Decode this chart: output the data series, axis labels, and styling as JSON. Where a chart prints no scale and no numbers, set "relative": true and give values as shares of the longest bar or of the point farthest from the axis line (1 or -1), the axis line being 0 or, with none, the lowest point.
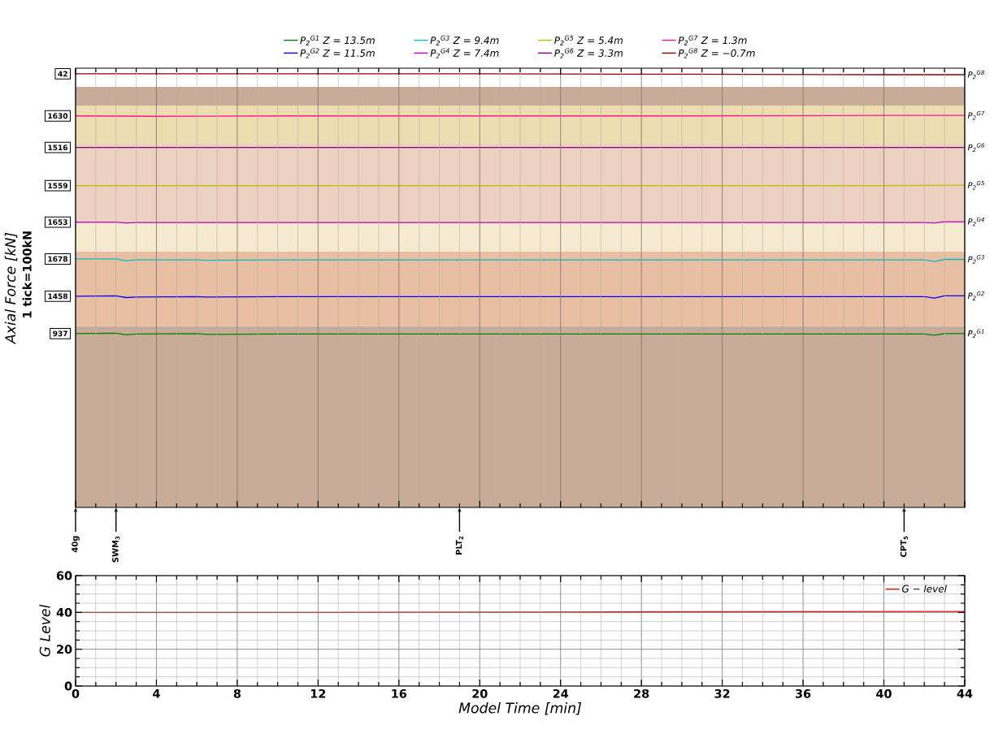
{
  "chart_data": [
    {
      "type": "line",
      "relative": true,
      "ylabel": "Axial Force [kN]",
      "xlim": [
        0,
        44
      ],
      "xticks": [
        0,
        4,
        8,
        12,
        16,
        20,
        24,
        28,
        32,
        36,
        40,
        44
      ],
      "tick_labels": false,
      "grid": true,
      "legend": "top",
      "series": [
        {
          "name": "P$_{2}$$^{G1}$ Z = 13.5m",
          "color": "#008000",
          "x": [
            0,
            2,
            2.5,
            3,
            6,
            6.5,
            10,
            20,
            30,
            40,
            42,
            42.5,
            43,
            44
          ],
          "values": [
            0.401,
            0.402,
            0.398,
            0.4,
            0.401,
            0.399,
            0.4,
            0.4,
            0.4,
            0.4,
            0.4,
            0.397,
            0.401,
            0.401
          ]
        },
        {
          "name": "P$_{2}$$^{G2}$ Z = 11.5m",
          "color": "#0000ff",
          "x": [
            0,
            2,
            2.5,
            3,
            6,
            6.5,
            10,
            20,
            30,
            40,
            42,
            42.5,
            43,
            44
          ],
          "values": [
            0.487,
            0.488,
            0.484,
            0.485,
            0.486,
            0.485,
            0.486,
            0.486,
            0.486,
            0.486,
            0.486,
            0.483,
            0.488,
            0.488
          ]
        },
        {
          "name": "P$_{2}$$^{G3}$ Z = 9.4m",
          "color": "#00bfbf",
          "x": [
            0,
            2,
            2.5,
            3,
            6,
            6.5,
            10,
            20,
            30,
            40,
            42,
            42.5,
            43,
            44
          ],
          "values": [
            0.573,
            0.573,
            0.569,
            0.571,
            0.571,
            0.57,
            0.571,
            0.571,
            0.571,
            0.571,
            0.571,
            0.567,
            0.572,
            0.572
          ]
        },
        {
          "name": "P$_{2}$$^{G4}$ Z = 7.4m",
          "color": "#bf00bf",
          "x": [
            0,
            2,
            2.5,
            3,
            10,
            20,
            30,
            40,
            42,
            42.5,
            43,
            44
          ],
          "values": [
            0.658,
            0.658,
            0.656,
            0.657,
            0.657,
            0.657,
            0.657,
            0.657,
            0.657,
            0.656,
            0.659,
            0.659
          ]
        },
        {
          "name": "P$_{2}$$^{G5}$ Z = 5.4m",
          "color": "#bfbf00",
          "x": [
            0,
            10,
            20,
            30,
            40,
            44
          ],
          "values": [
            0.742,
            0.742,
            0.742,
            0.742,
            0.742,
            0.743
          ]
        },
        {
          "name": "P$_{2}$$^{G6}$ Z = 3.3m",
          "color": "#800080",
          "x": [
            0,
            10,
            20,
            30,
            40,
            44
          ],
          "values": [
            0.83,
            0.83,
            0.83,
            0.83,
            0.83,
            0.83
          ]
        },
        {
          "name": "P$_{2}$$^{G7}$ Z = 1.3m",
          "color": "#ff1493",
          "x": [
            0,
            4,
            10,
            20,
            30,
            40,
            44
          ],
          "values": [
            0.903,
            0.902,
            0.903,
            0.903,
            0.903,
            0.904,
            0.904
          ]
        },
        {
          "name": "P$_{2}$$^{G8}$ Z = −0.7m",
          "color": "#8b0000",
          "x": [
            0,
            10,
            20,
            30,
            40,
            44
          ],
          "values": [
            1,
            1,
            1,
            0.999,
            0.998,
            0.998
          ]
        }
      ],
      "bands": [
        {
          "axis": "y",
          "from": 0,
          "to": 0.418,
          "color": "#c8ab98"
        },
        {
          "axis": "y",
          "from": 0.418,
          "to": 0.59,
          "color": "#e8bfa2"
        },
        {
          "axis": "y",
          "from": 0.59,
          "to": 0.655,
          "color": "#f6ead0"
        },
        {
          "axis": "y",
          "from": 0.655,
          "to": 0.839,
          "color": "#ecd1c0"
        },
        {
          "axis": "y",
          "from": 0.839,
          "to": 0.927,
          "color": "#ecdcb0"
        },
        {
          "axis": "y",
          "from": 0.927,
          "to": 0.97,
          "color": "#c8ab98"
        }
      ],
      "annotations": [
        {
          "text": "937",
          "x": 0,
          "y": 0.401
        },
        {
          "text": "1458",
          "x": 0,
          "y": 0.487
        },
        {
          "text": "1678",
          "x": 0,
          "y": 0.573
        },
        {
          "text": "1653",
          "x": 0,
          "y": 0.658
        },
        {
          "text": "1559",
          "x": 0,
          "y": 0.742
        },
        {
          "text": "1516",
          "x": 0,
          "y": 0.83
        },
        {
          "text": "1630",
          "x": 0,
          "y": 0.903
        },
        {
          "text": "42",
          "x": 0,
          "y": 1
        },
        {
          "text": "P$_{2}$$^{G1}$",
          "x": 44,
          "y": 0.401
        },
        {
          "text": "P$_{2}$$^{G2}$",
          "x": 44,
          "y": 0.488
        },
        {
          "text": "P$_{2}$$^{G3}$",
          "x": 44,
          "y": 0.572
        },
        {
          "text": "P$_{2}$$^{G4}$",
          "x": 44,
          "y": 0.659
        },
        {
          "text": "P$_{2}$$^{G5}$",
          "x": 44,
          "y": 0.743
        },
        {
          "text": "P$_{2}$$^{G6}$",
          "x": 44,
          "y": 0.83
        },
        {
          "text": "P$_{2}$$^{G7}$",
          "x": 44,
          "y": 0.904
        },
        {
          "text": "P$_{2}$$^{G8}$",
          "x": 44,
          "y": 0.998
        },
        {
          "text": "40g",
          "x": 0,
          "y": 0
        },
        {
          "text": "SWM$_{3}$",
          "x": 2,
          "y": 0
        },
        {
          "text": "PLT$_{2}$",
          "x": 19,
          "y": 0
        },
        {
          "text": "CPT$_{5}$",
          "x": 41,
          "y": 0
        },
        "1 tick=100kN"
      ]
    },
    {
      "type": "line",
      "xlabel": "Model Time [min]",
      "ylabel": "G Level",
      "xlim": [
        0,
        44
      ],
      "xticks": [
        0,
        4,
        8,
        12,
        16,
        20,
        24,
        28,
        32,
        36,
        40,
        44
      ],
      "ylim": [
        0,
        60
      ],
      "yticks": [
        0,
        20,
        40,
        60
      ],
      "grid": true,
      "legend": "top right",
      "series": [
        {
          "name": "G − level",
          "color": "#ff0000",
          "x": [
            0,
            4,
            12,
            24,
            36,
            44
          ],
          "values": [
            40,
            40,
            40,
            40.2,
            40.4,
            40.5
          ]
        }
      ]
    }
  ]
}
